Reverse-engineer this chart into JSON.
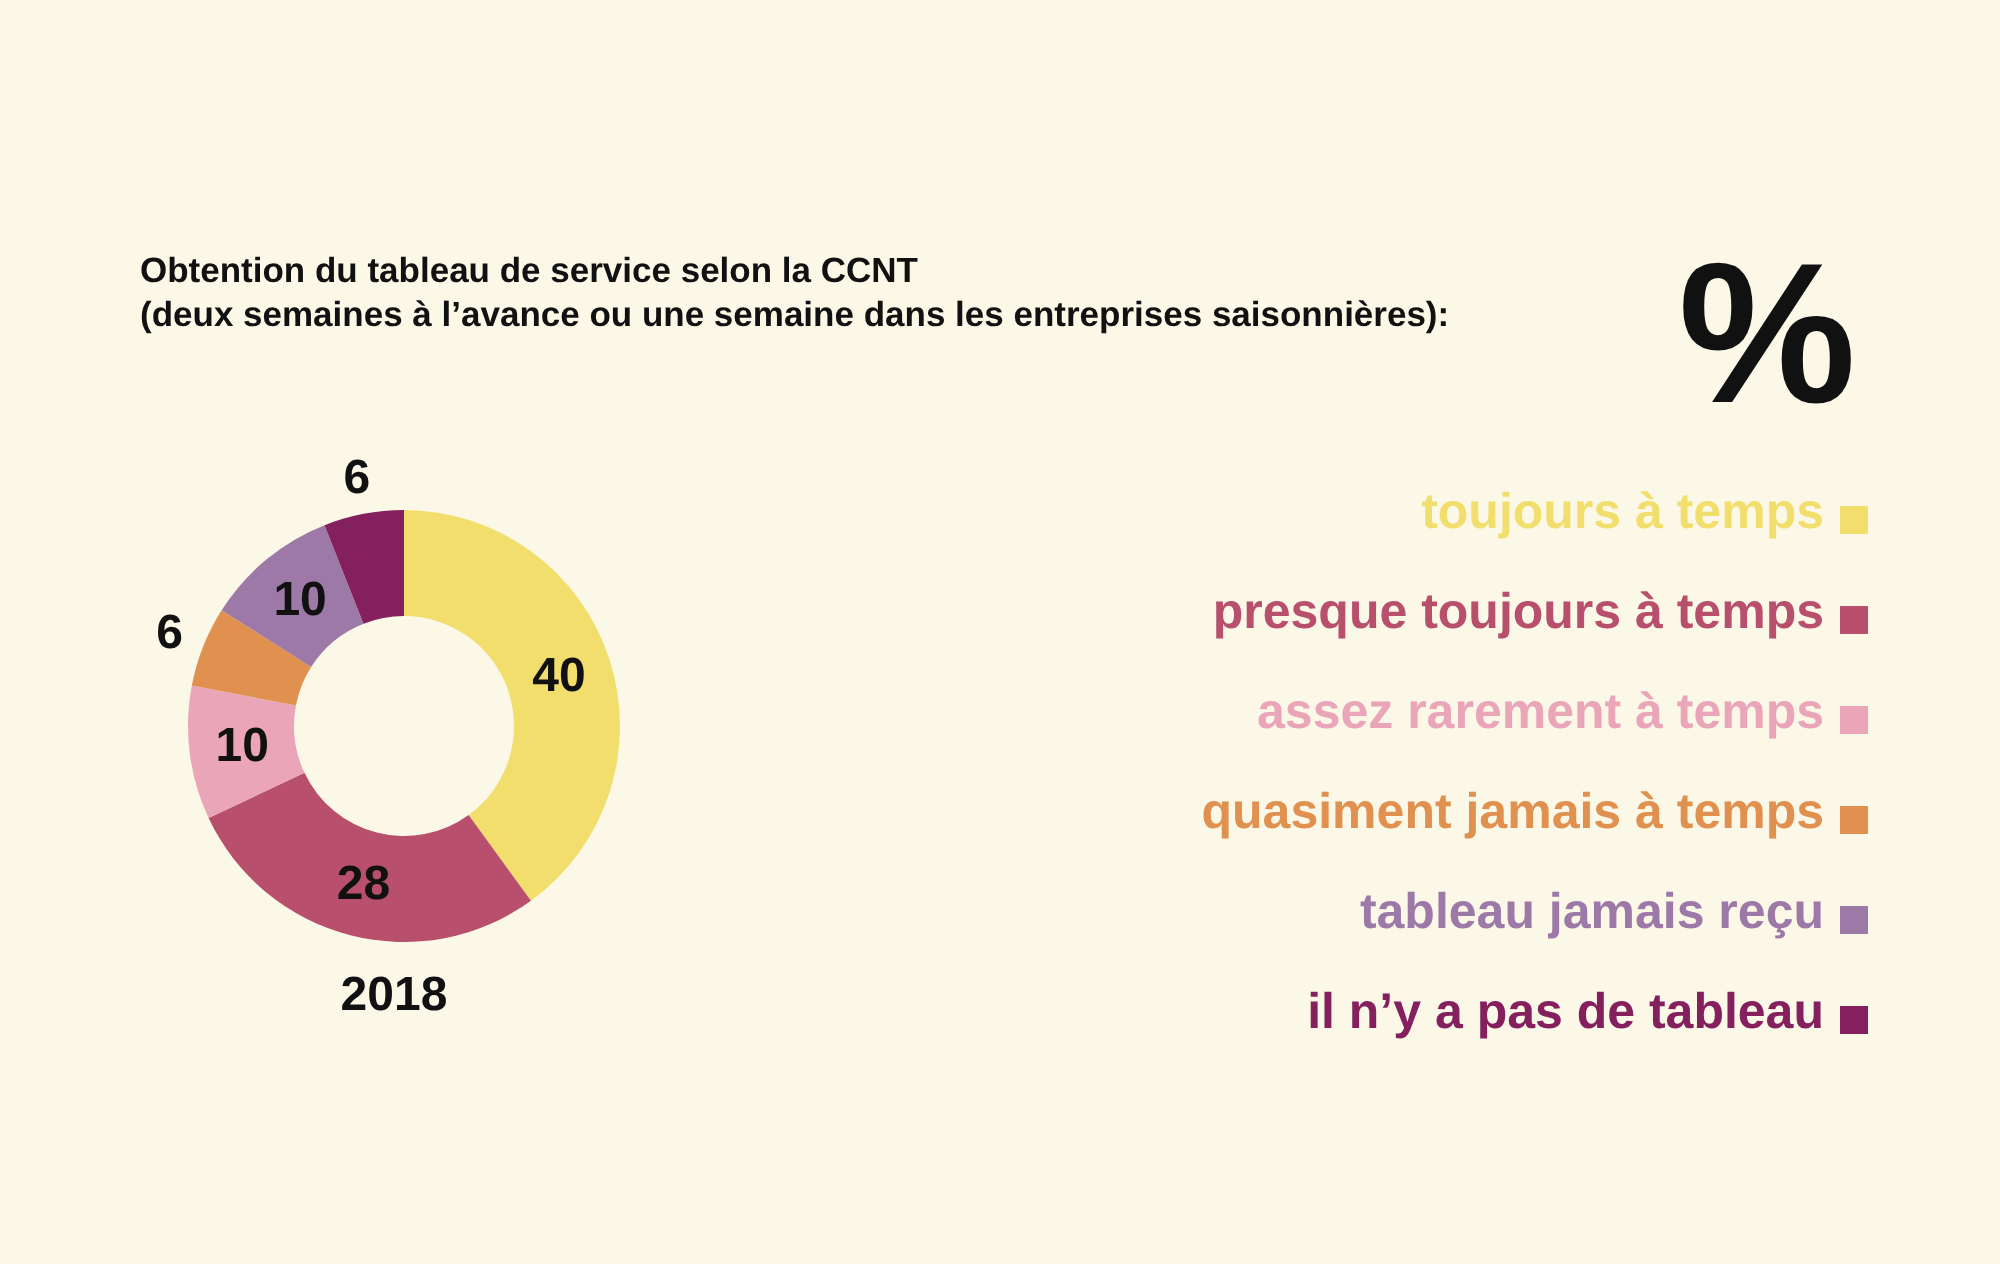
{
  "chart_data": {
    "type": "donut",
    "title": "Obtention du tableau de service selon la CCNT\n(deux semaines à l’avance ou une semaine dans les entreprises saisonnières):",
    "categories": [
      "toujours à temps",
      "presque toujours à temps",
      "assez rarement à temps",
      "quasiment jamais à temps",
      "tableau jamais reçu",
      "il n’y a pas de tableau"
    ],
    "values": [
      40,
      28,
      10,
      6,
      10,
      6
    ],
    "colors": [
      "#f2de6c",
      "#b84f6c",
      "#eaa5b9",
      "#e0914f",
      "#9d79a8",
      "#85205f"
    ],
    "data_labels": true,
    "legend": "right",
    "xlabel": "2018",
    "annotations": [
      "%"
    ]
  }
}
